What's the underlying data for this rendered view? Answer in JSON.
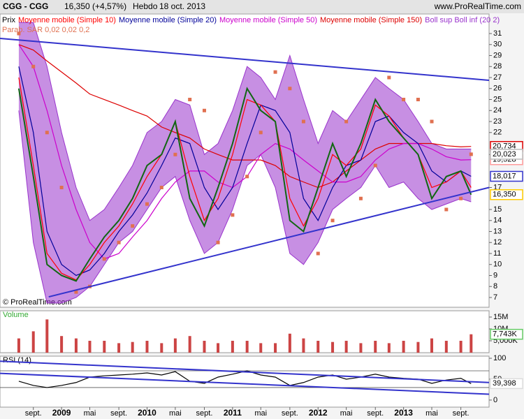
{
  "header": {
    "title": "CGG - CGG",
    "quote": "16,350 (+4,57%)",
    "period": "Hebdo",
    "date": "18 oct. 2013",
    "site": "www.ProRealTime.com",
    "copyright": "© ProRealTime.com"
  },
  "chart_data": [
    {
      "type": "line",
      "xlim": [
        2008.28,
        2014.0
      ],
      "ylim": [
        6.11,
        32.78
      ],
      "yticks": [
        7,
        8,
        9,
        10,
        11,
        12,
        13,
        14,
        15,
        17,
        20,
        22,
        23,
        24,
        25,
        26,
        27,
        28,
        29,
        30,
        31
      ],
      "x": [
        2008.5,
        2008.67,
        2008.83,
        2009,
        2009.17,
        2009.33,
        2009.5,
        2009.67,
        2009.83,
        2010,
        2010.17,
        2010.33,
        2010.5,
        2010.67,
        2010.83,
        2011,
        2011.17,
        2011.33,
        2011.5,
        2011.67,
        2011.83,
        2012,
        2012.17,
        2012.33,
        2012.5,
        2012.67,
        2012.83,
        2013,
        2013.17,
        2013.33,
        2013.5,
        2013.67,
        2013.79
      ],
      "series": [
        {
          "name": "Boll sup Boll inf (20 2)",
          "kind": "band",
          "color": "#9933cc",
          "upper": [
            32,
            32,
            28,
            22,
            17,
            14,
            15,
            17,
            19,
            22,
            23,
            25,
            24.5,
            20,
            21,
            24,
            28,
            27,
            25,
            29,
            25,
            21,
            24,
            23,
            25,
            27,
            26,
            25,
            23,
            21,
            20.5,
            20.5,
            20.5
          ],
          "lower": [
            24,
            12,
            6.5,
            6.5,
            7,
            8,
            10,
            12,
            13,
            15,
            17,
            18,
            14,
            11,
            12,
            15,
            19,
            20,
            17,
            11,
            10,
            12,
            15,
            16,
            17,
            19,
            17,
            17.5,
            16,
            15,
            15.5,
            16,
            15.7
          ]
        },
        {
          "name": "Moyenne mobile (Simple 150)",
          "kind": "line",
          "color": "#dd0000",
          "box_color": "#dd0000",
          "values": [
            30,
            29.5,
            28.5,
            27.5,
            26.5,
            25.5,
            25,
            24.5,
            24,
            23.5,
            22.5,
            22,
            21.5,
            20.5,
            20,
            19.5,
            19.5,
            19.5,
            19,
            18,
            17.5,
            17,
            17.5,
            18.5,
            19.5,
            20.5,
            21,
            21,
            21,
            21,
            20.8,
            20.7,
            20.734
          ],
          "value_labels": [
            null,
            null,
            null,
            null,
            null,
            null,
            null,
            null,
            null,
            null,
            null,
            null,
            null,
            null,
            null,
            null,
            null,
            null,
            null,
            null,
            null,
            null,
            null,
            null,
            null,
            null,
            null,
            null,
            null,
            null,
            null,
            null,
            "20,734"
          ]
        },
        {
          "name": "Moyenne mobile (Simple 50)",
          "kind": "line",
          "color": "#cc00cc",
          "box_color": "#ff9999",
          "values": [
            30,
            28,
            24,
            19,
            15,
            12,
            10.5,
            11,
            12.5,
            14,
            16,
            17.5,
            18.5,
            18.5,
            17.5,
            17,
            18,
            20,
            21,
            20.5,
            19.5,
            18.5,
            17.5,
            17.5,
            18,
            19.5,
            20.5,
            21,
            21,
            20.5,
            19.8,
            19.5,
            19.528
          ],
          "value_labels": [
            null,
            null,
            null,
            null,
            null,
            null,
            null,
            null,
            null,
            null,
            null,
            null,
            null,
            null,
            null,
            null,
            null,
            null,
            null,
            null,
            null,
            null,
            null,
            null,
            null,
            null,
            null,
            null,
            null,
            null,
            null,
            null,
            "19,528"
          ]
        },
        {
          "name": "Moyenne mobile (Simple 20)",
          "kind": "line",
          "color": "#000099",
          "box_color": "#3333cc",
          "values": [
            28,
            22,
            13,
            10,
            9,
            9.5,
            11,
            13,
            14.5,
            16.5,
            19,
            21.5,
            21,
            17,
            15,
            17,
            21,
            24.5,
            24,
            22,
            16,
            14,
            17,
            19,
            19.5,
            23,
            23.5,
            22,
            21,
            18.5,
            17.5,
            18.5,
            18.017
          ],
          "value_labels": [
            null,
            null,
            null,
            null,
            null,
            null,
            null,
            null,
            null,
            null,
            null,
            null,
            null,
            null,
            null,
            null,
            null,
            null,
            null,
            null,
            null,
            null,
            null,
            null,
            null,
            null,
            null,
            null,
            null,
            null,
            null,
            null,
            "18,017"
          ]
        },
        {
          "name": "Moyenne mobile (Simple 10)",
          "kind": "line",
          "color": "#ff0000",
          "values": [
            27,
            19,
            11,
            9.2,
            8.6,
            10,
            12,
            13.5,
            15.5,
            18,
            20,
            23,
            18,
            14,
            16,
            20,
            25,
            24.5,
            23,
            16,
            13.5,
            16,
            20,
            19,
            20.5,
            24.5,
            23.5,
            21.5,
            20,
            17,
            17.5,
            18.5,
            17
          ]
        },
        {
          "name": "Parab. SAR 0,02 0,02 0,2",
          "kind": "points",
          "color": "#e07050",
          "box_color": "#bbbbbb",
          "values": [
            31,
            28,
            22,
            17,
            7.5,
            8,
            10.5,
            12,
            13.5,
            15.5,
            17,
            20,
            25,
            24,
            12,
            14.5,
            18,
            22,
            27.5,
            26,
            23,
            11,
            14,
            23,
            16,
            19,
            27,
            25,
            25,
            23,
            15,
            16,
            20.023
          ],
          "value_labels": [
            null,
            null,
            null,
            null,
            null,
            null,
            null,
            null,
            null,
            null,
            null,
            null,
            null,
            null,
            null,
            null,
            null,
            null,
            null,
            null,
            null,
            null,
            null,
            null,
            null,
            null,
            null,
            null,
            null,
            null,
            null,
            null,
            "20,023"
          ]
        },
        {
          "name": "Prix",
          "kind": "line",
          "color": "#116611",
          "box_color": "#ffcc00",
          "values": [
            26,
            18,
            10,
            9,
            8.5,
            10.5,
            12.5,
            14,
            16,
            19,
            20,
            23,
            16,
            13.5,
            17,
            21,
            26,
            24,
            23,
            14,
            13,
            17,
            21,
            18,
            21,
            25,
            23,
            21.5,
            20,
            16,
            18,
            18.5,
            16.35
          ],
          "value_labels": [
            null,
            null,
            null,
            null,
            null,
            null,
            null,
            null,
            null,
            null,
            null,
            null,
            null,
            null,
            null,
            null,
            null,
            null,
            null,
            null,
            null,
            null,
            null,
            null,
            null,
            null,
            null,
            null,
            null,
            null,
            null,
            null,
            "16,350"
          ]
        }
      ],
      "trendlines": [
        {
          "x": [
            2008.28,
            2014.0
          ],
          "values": [
            30.56,
            26.75
          ],
          "color": "#3333cc"
        },
        {
          "x": [
            2008.85,
            2014.0
          ],
          "values": [
            7.06,
            17.0
          ],
          "color": "#3333cc"
        }
      ]
    },
    {
      "type": "bar",
      "title": "Volume",
      "xlim": [
        2008.28,
        2014.0
      ],
      "ylim": [
        0,
        17650000
      ],
      "yticks": [
        {
          "value": 15000000,
          "label": "15M"
        },
        {
          "value": 10000000,
          "label": "10M"
        },
        {
          "value": 5000000,
          "label": "5,000K"
        }
      ],
      "x": [
        2008.5,
        2008.67,
        2008.83,
        2009,
        2009.17,
        2009.33,
        2009.5,
        2009.67,
        2009.83,
        2010,
        2010.17,
        2010.33,
        2010.5,
        2010.67,
        2010.83,
        2011,
        2011.17,
        2011.33,
        2011.5,
        2011.67,
        2011.83,
        2012,
        2012.17,
        2012.33,
        2012.5,
        2012.67,
        2012.83,
        2013,
        2013.17,
        2013.33,
        2013.5,
        2013.67,
        2013.79
      ],
      "series": [
        {
          "name": "Volume",
          "color": "#cc4444",
          "box_color": "#66cc66",
          "values": [
            6000000,
            9000000,
            14000000,
            7000000,
            6000000,
            5000000,
            5000000,
            4000000,
            4500000,
            5000000,
            4000000,
            6000000,
            7000000,
            5000000,
            4000000,
            5000000,
            5000000,
            4000000,
            4000000,
            8000000,
            6000000,
            5000000,
            4500000,
            5000000,
            4000000,
            5000000,
            4000000,
            5000000,
            4500000,
            6000000,
            5000000,
            5000000,
            7743000
          ],
          "value_labels": [
            null,
            null,
            null,
            null,
            null,
            null,
            null,
            null,
            null,
            null,
            null,
            null,
            null,
            null,
            null,
            null,
            null,
            null,
            null,
            null,
            null,
            null,
            null,
            null,
            null,
            null,
            null,
            null,
            null,
            null,
            null,
            null,
            "7,743K"
          ]
        }
      ]
    },
    {
      "type": "line",
      "title": "RSI (14)",
      "xlim": [
        2008.28,
        2014.0
      ],
      "ylim": [
        -16.9,
        105.1
      ],
      "yticks": [
        0,
        50,
        100
      ],
      "levels": [
        30,
        70
      ],
      "xticks": [
        {
          "value": 2008.67,
          "label": "sept."
        },
        2009,
        {
          "value": 2009.33,
          "label": "mai"
        },
        {
          "value": 2009.67,
          "label": "sept."
        },
        2010,
        {
          "value": 2010.33,
          "label": "mai"
        },
        {
          "value": 2010.67,
          "label": "sept."
        },
        2011,
        {
          "value": 2011.33,
          "label": "mai"
        },
        {
          "value": 2011.67,
          "label": "sept."
        },
        2012,
        {
          "value": 2012.33,
          "label": "mai"
        },
        {
          "value": 2012.67,
          "label": "sept."
        },
        2013,
        {
          "value": 2013.33,
          "label": "mai"
        },
        {
          "value": 2013.67,
          "label": "sept."
        }
      ],
      "x": [
        2008.5,
        2008.67,
        2008.83,
        2009,
        2009.17,
        2009.33,
        2009.5,
        2009.67,
        2009.83,
        2010,
        2010.17,
        2010.33,
        2010.5,
        2010.67,
        2010.83,
        2011,
        2011.17,
        2011.33,
        2011.5,
        2011.67,
        2011.83,
        2012,
        2012.17,
        2012.33,
        2012.5,
        2012.67,
        2012.83,
        2013,
        2013.17,
        2013.33,
        2013.5,
        2013.67,
        2013.79
      ],
      "series": [
        {
          "name": "RSI (14)",
          "color": "#000000",
          "box_color": "#dddddd",
          "values": [
            45,
            35,
            30,
            35,
            42,
            55,
            58,
            60,
            62,
            65,
            60,
            68,
            45,
            40,
            55,
            62,
            70,
            60,
            55,
            35,
            42,
            55,
            60,
            50,
            55,
            62,
            55,
            52,
            50,
            40,
            48,
            52,
            39.398
          ],
          "value_labels": [
            null,
            null,
            null,
            null,
            null,
            null,
            null,
            null,
            null,
            null,
            null,
            null,
            null,
            null,
            null,
            null,
            null,
            null,
            null,
            null,
            null,
            null,
            null,
            null,
            null,
            null,
            null,
            null,
            null,
            null,
            null,
            null,
            "39,398"
          ]
        }
      ],
      "trendlines": [
        {
          "x": [
            2008.28,
            2014.0
          ],
          "values": [
            93,
            42
          ],
          "color": "#3333cc"
        },
        {
          "x": [
            2008.28,
            2014.0
          ],
          "values": [
            64,
            14
          ],
          "color": "#3333cc"
        }
      ]
    }
  ]
}
